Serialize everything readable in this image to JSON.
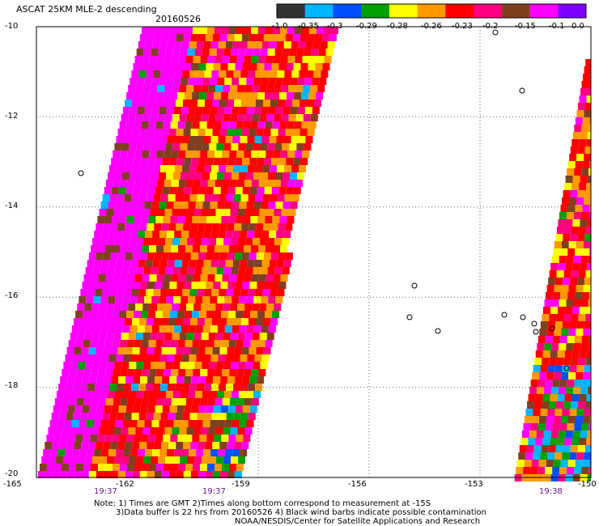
{
  "header": {
    "title": "ASCAT 25KM MLE-2 descending",
    "date": "20160526"
  },
  "colorbar": {
    "labels": [
      "-1.0",
      "-0.35",
      "-0.3",
      "-0.29",
      "-0.28",
      "-0.26",
      "-0.23",
      "-0.2",
      "-0.15",
      "-0.1",
      "0.0"
    ],
    "colors": [
      "#333333",
      "#00b4ff",
      "#0050ff",
      "#00a000",
      "#ffff00",
      "#ff9900",
      "#ff0000",
      "#ff0080",
      "#804020",
      "#ff00ff",
      "#8000ff"
    ]
  },
  "axes": {
    "x_ticks": [
      "-165",
      "-162",
      "-159",
      "-156",
      "-153",
      "-150"
    ],
    "y_ticks": [
      "-10",
      "-12",
      "-14",
      "-16",
      "-18",
      "-20"
    ],
    "x_range": [
      -165,
      -150
    ],
    "y_range": [
      -20,
      -10
    ]
  },
  "swath_times": [
    "19:37",
    "19:37",
    "19:38"
  ],
  "notes": {
    "line1": "Note: 1) Times are GMT 2)Times along bottom correspond to measurement at -15S",
    "line2": "3)Data buffer is 22 hrs from 20160526 4) Black wind barbs indicate possible contamination",
    "line3": "NOAA/NESDIS/Center for Satellite Applications and Research"
  }
}
